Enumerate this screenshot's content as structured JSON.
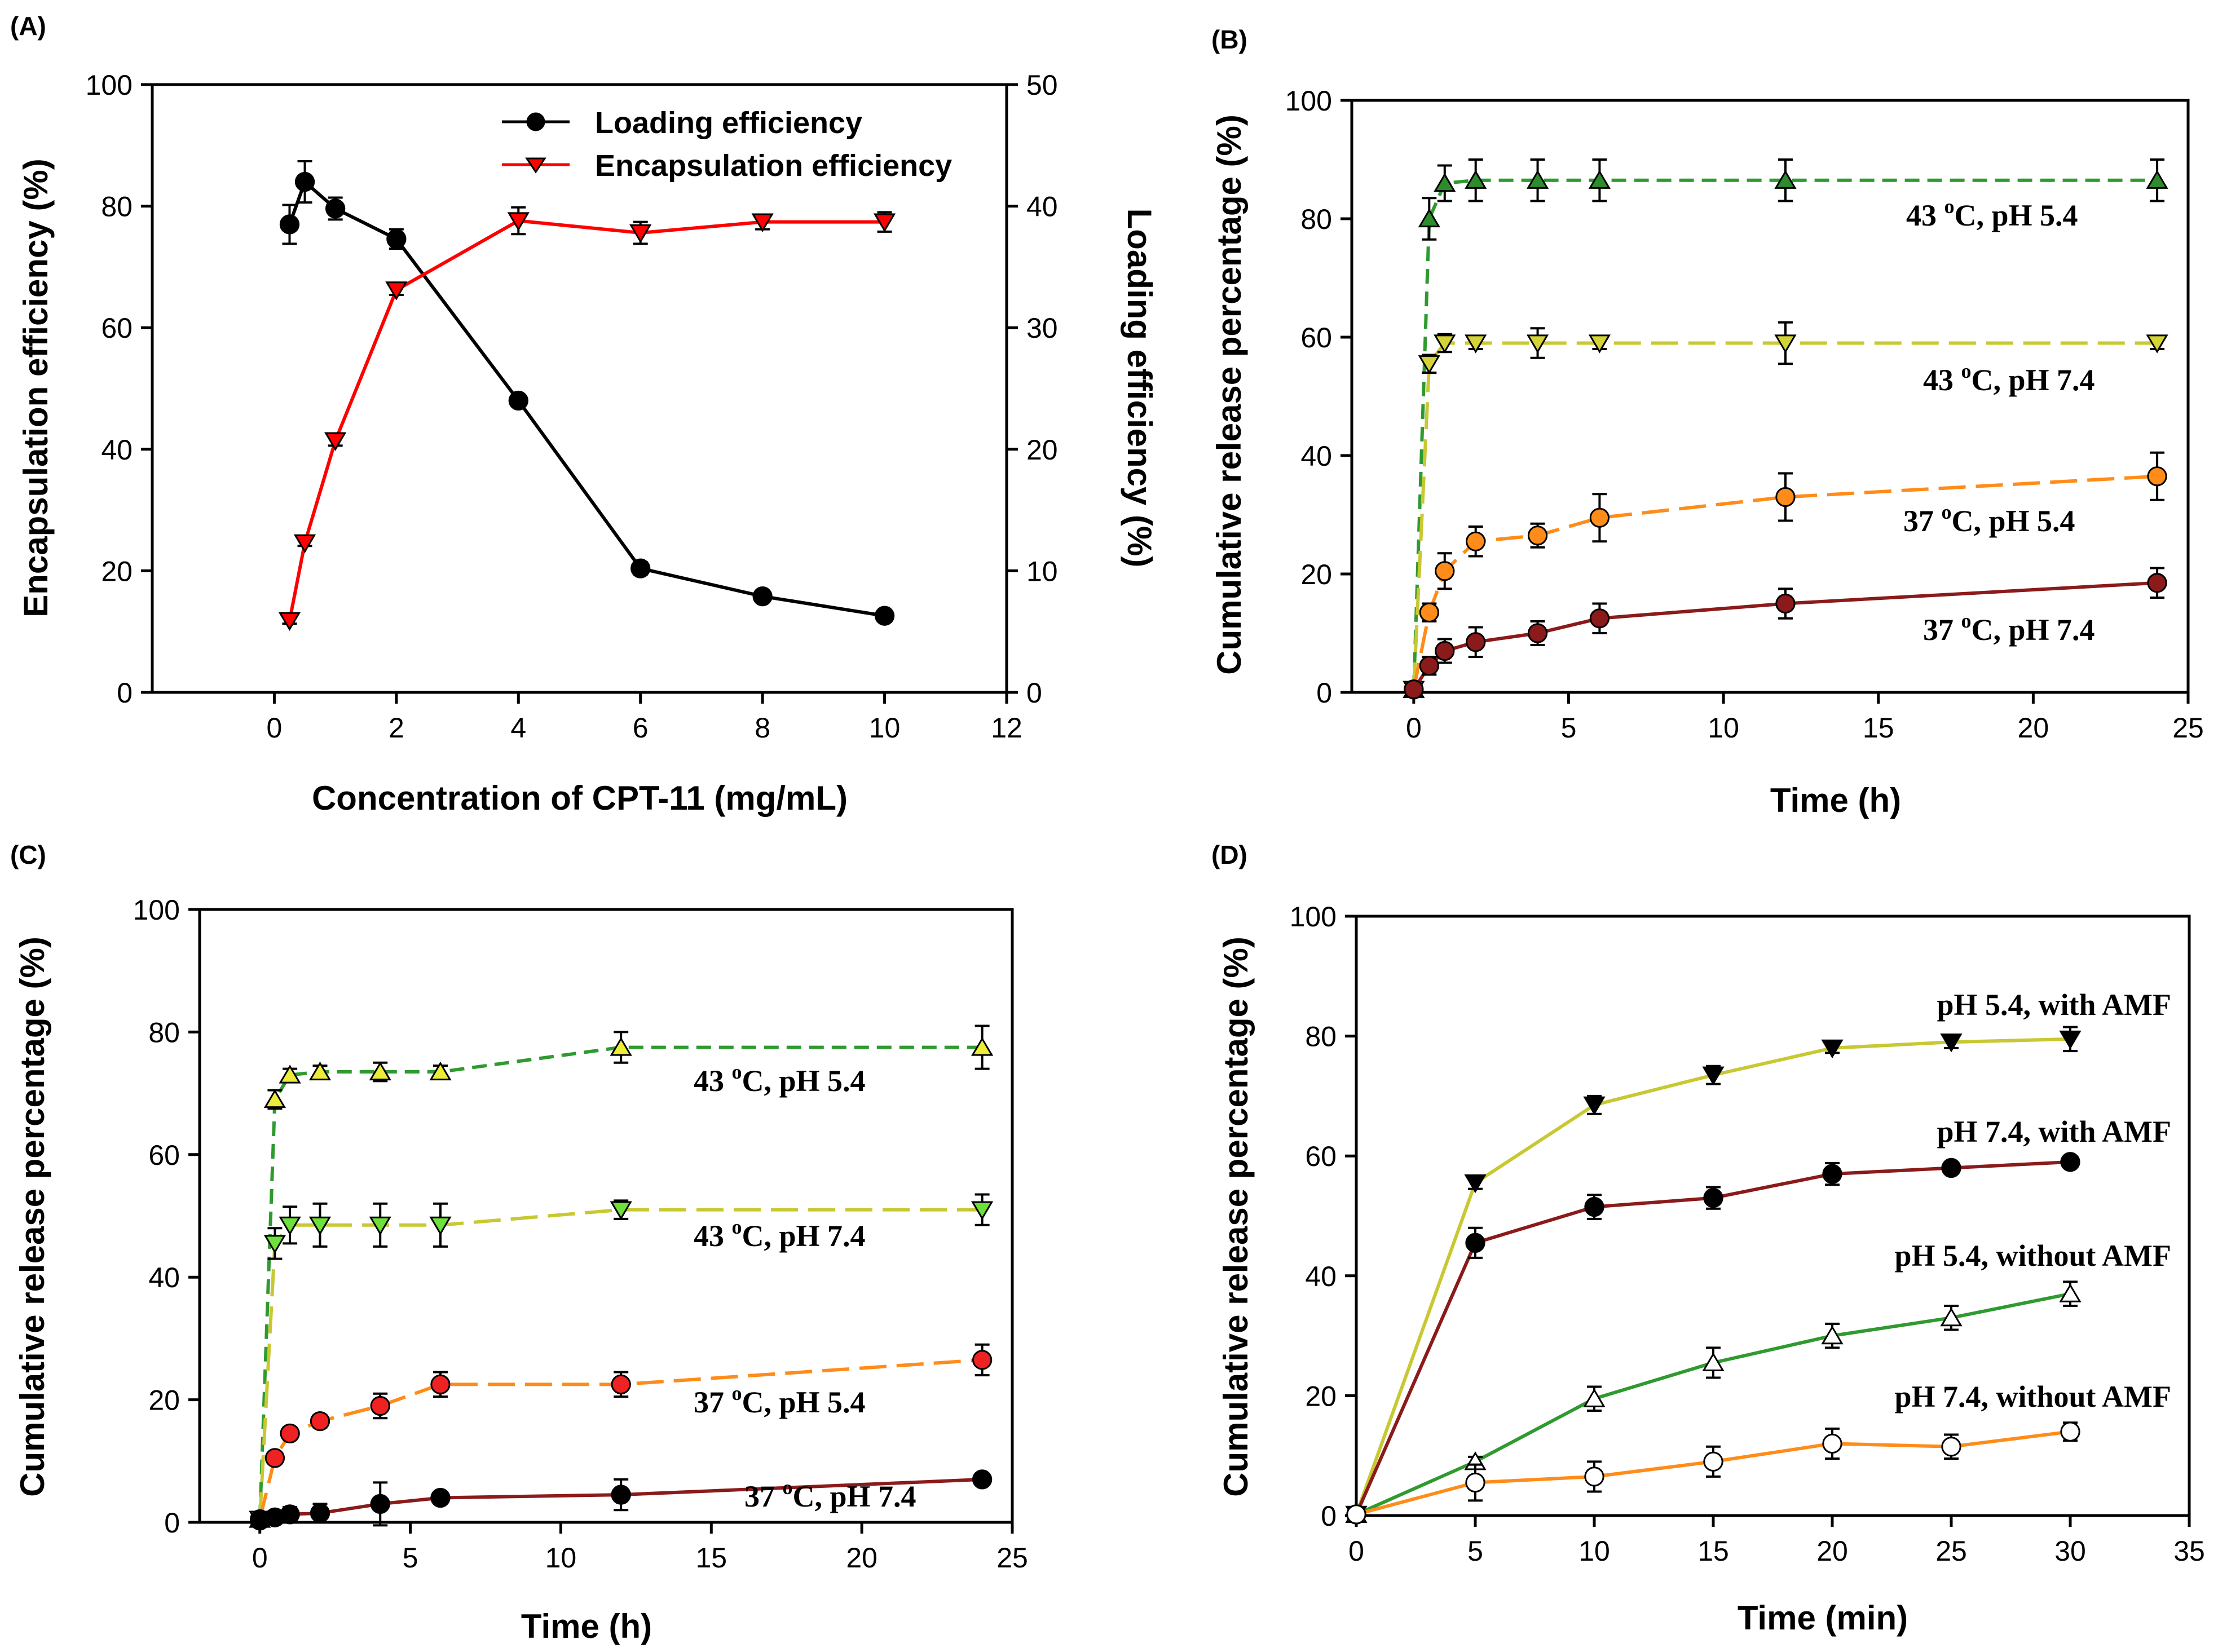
{
  "chart_data": [
    {
      "panel": "(A)",
      "type": "line",
      "title": "",
      "xlabel": "Concentration of CPT-11 (mg/mL)",
      "ylabel": "Encapsulation efficiency (%)",
      "y2label": "Loading efficiency (%)",
      "xlim": [
        -2,
        12
      ],
      "ylim": [
        0,
        100
      ],
      "y2lim": [
        0,
        50
      ],
      "xticks": [
        "0",
        "2",
        "4",
        "6",
        "8",
        "10",
        "12"
      ],
      "yticks": [
        "0",
        "20",
        "40",
        "60",
        "80",
        "100"
      ],
      "y2ticks": [
        "0",
        "10",
        "20",
        "30",
        "40",
        "50"
      ],
      "legend_position": "top-right",
      "series": [
        {
          "name": "Loading efficiency",
          "axis": "right",
          "color": "#000000",
          "line_color": "#000000",
          "marker": "circle",
          "fill": "#000000",
          "dash": "solid",
          "x": [
            0.25,
            0.5,
            1,
            2,
            4,
            6,
            8,
            10
          ],
          "y": [
            38.5,
            42.0,
            39.8,
            37.3,
            24.0,
            10.2,
            7.9,
            6.3
          ],
          "err": [
            1.6,
            1.7,
            0.9,
            0.8,
            0.3,
            0.5,
            0.3,
            0.3
          ]
        },
        {
          "name": "Encapsulation efficiency",
          "axis": "left",
          "color": "#ff0000",
          "line_color": "#ff0000",
          "marker": "triangle-down",
          "fill": "#ff0000",
          "dash": "solid",
          "x": [
            0.25,
            0.5,
            1,
            2,
            4,
            6,
            8,
            10
          ],
          "y": [
            11.8,
            24.6,
            41.4,
            66.2,
            77.6,
            75.6,
            77.4,
            77.4
          ],
          "err": [
            0.5,
            0.5,
            0.8,
            0.8,
            2.2,
            1.8,
            1.2,
            1.6
          ]
        }
      ]
    },
    {
      "panel": "(B)",
      "type": "line",
      "title": "",
      "xlabel": "Time (h)",
      "ylabel": "Cumulative release percentage (%)",
      "xlim": [
        -2,
        25
      ],
      "ylim": [
        0,
        100
      ],
      "xticks": [
        "0",
        "5",
        "10",
        "15",
        "20",
        "25"
      ],
      "yticks": [
        "0",
        "20",
        "40",
        "60",
        "80",
        "100"
      ],
      "annotations": [
        "43 °C, pH 5.4",
        "43 °C, pH 7.4",
        "37 °C, pH 5.4",
        "37 °C, pH 7.4"
      ],
      "series": [
        {
          "name": "43 °C, pH 5.4",
          "color": "#2e8b2e",
          "line_color": "#2f9a2f",
          "marker": "triangle-up",
          "fill": "#2e8b2e",
          "dash": "short",
          "x": [
            0,
            0.5,
            1,
            2,
            4,
            6,
            12,
            24
          ],
          "y": [
            0.5,
            80,
            86,
            86.5,
            86.5,
            86.5,
            86.5,
            86.5
          ],
          "err": [
            0.5,
            3.5,
            3,
            3.5,
            3.5,
            3.5,
            3.5,
            3.5
          ]
        },
        {
          "name": "43 °C, pH 7.4",
          "color": "#c8c832",
          "line_color": "#c8c832",
          "marker": "triangle-down",
          "fill": "#d4d438",
          "dash": "long",
          "x": [
            0,
            0.5,
            1,
            2,
            4,
            6,
            12,
            24
          ],
          "y": [
            0.5,
            55.5,
            59,
            59,
            59,
            59,
            59,
            59
          ],
          "err": [
            0.5,
            1.5,
            1.5,
            1,
            2.5,
            1,
            3.5,
            1
          ]
        },
        {
          "name": "37 °C, pH 5.4",
          "color": "#ff8c1a",
          "line_color": "#ff8c1a",
          "marker": "circle",
          "fill": "#ff8c1a",
          "dash": "long",
          "x": [
            0,
            0.5,
            1,
            2,
            4,
            6,
            12,
            24
          ],
          "y": [
            0.5,
            13.5,
            20.5,
            25.5,
            26.5,
            29.5,
            33,
            36.5
          ],
          "err": [
            0.3,
            1.5,
            3,
            2.5,
            2,
            4,
            4,
            4
          ]
        },
        {
          "name": "37 °C, pH 7.4",
          "color": "#8b1a1a",
          "line_color": "#8b1a1a",
          "marker": "circle",
          "fill": "#8b1a1a",
          "dash": "solid",
          "x": [
            0,
            0.5,
            1,
            2,
            4,
            6,
            12,
            24
          ],
          "y": [
            0.5,
            4.5,
            7,
            8.5,
            10,
            12.5,
            15,
            18.5
          ],
          "err": [
            0.3,
            1.5,
            2,
            2.5,
            2,
            2.5,
            2.5,
            2.5
          ]
        }
      ]
    },
    {
      "panel": "(C)",
      "type": "line",
      "title": "",
      "xlabel": "Time (h)",
      "ylabel": "Cumulative release percentage (%)",
      "xlim": [
        -2,
        25
      ],
      "ylim": [
        0,
        100
      ],
      "xticks": [
        "0",
        "5",
        "10",
        "15",
        "20",
        "25"
      ],
      "yticks": [
        "0",
        "20",
        "40",
        "60",
        "80",
        "100"
      ],
      "annotations": [
        "43 °C, pH 5.4",
        "43 °C, pH 7.4",
        "37 °C, pH 5.4",
        "37 °C, pH 7.4"
      ],
      "series": [
        {
          "name": "43 °C, pH 5.4",
          "color": "#e8e830",
          "line_color": "#2f9a2f",
          "marker": "triangle-up",
          "fill": "#ecec3a",
          "dash": "short",
          "x": [
            0,
            0.5,
            1,
            2,
            4,
            6,
            12,
            24
          ],
          "y": [
            0.5,
            69,
            73,
            73.5,
            73.5,
            73.5,
            77.5,
            77.5
          ],
          "err": [
            0.3,
            1.5,
            1,
            1,
            1.5,
            1,
            2.5,
            3.5
          ]
        },
        {
          "name": "43 °C, pH 7.4",
          "color": "#66dd33",
          "line_color": "#c8c832",
          "marker": "triangle-down",
          "fill": "#6ee03a",
          "dash": "long",
          "x": [
            0,
            0.5,
            1,
            2,
            4,
            6,
            12,
            24
          ],
          "y": [
            0.5,
            45.5,
            48.5,
            48.5,
            48.5,
            48.5,
            51,
            51
          ],
          "err": [
            0.3,
            2.5,
            3,
            3.5,
            3.5,
            3.5,
            1.5,
            2.5
          ]
        },
        {
          "name": "37 °C, pH 5.4",
          "color": "#ee2222",
          "line_color": "#ff8c1a",
          "marker": "circle",
          "fill": "#ee2222",
          "dash": "long",
          "x": [
            0,
            0.5,
            1,
            2,
            4,
            6,
            12,
            24
          ],
          "y": [
            0.5,
            10.5,
            14.5,
            16.5,
            19,
            22.5,
            22.5,
            26.5
          ],
          "err": [
            0.3,
            0.8,
            1,
            1,
            2,
            2,
            2,
            2.5
          ]
        },
        {
          "name": "37 °C, pH 7.4",
          "color": "#000000",
          "line_color": "#8b1a1a",
          "marker": "circle",
          "fill": "#000000",
          "dash": "solid",
          "x": [
            0,
            0.5,
            1,
            2,
            4,
            6,
            12,
            24
          ],
          "y": [
            0.3,
            0.8,
            1.3,
            1.5,
            3,
            4,
            4.5,
            7
          ],
          "err": [
            0.2,
            1,
            1.2,
            1.5,
            3.5,
            0.8,
            2.5,
            0.8
          ]
        }
      ]
    },
    {
      "panel": "(D)",
      "type": "line",
      "title": "",
      "xlabel": "Time (min)",
      "ylabel": "Cumulative release percentage (%)",
      "xlim": [
        0,
        35
      ],
      "ylim": [
        0,
        100
      ],
      "xticks": [
        "0",
        "5",
        "10",
        "15",
        "20",
        "25",
        "30",
        "35"
      ],
      "yticks": [
        "0",
        "20",
        "40",
        "60",
        "80",
        "100"
      ],
      "annotations": [
        "pH 5.4, with AMF",
        "pH 7.4, with AMF",
        "pH 5.4, without AMF",
        "pH 7.4, without AMF"
      ],
      "series": [
        {
          "name": "pH 5.4, with AMF",
          "color": "#000000",
          "line_color": "#c8c832",
          "marker": "triangle-down",
          "fill": "#000000",
          "dash": "solid",
          "x": [
            0,
            5,
            10,
            15,
            20,
            25,
            30
          ],
          "y": [
            0.2,
            55.5,
            68.5,
            73.5,
            78,
            79,
            79.5
          ],
          "err": [
            0.3,
            1,
            1.5,
            1.5,
            0.8,
            1,
            2
          ]
        },
        {
          "name": "pH 7.4, with AMF",
          "color": "#000000",
          "line_color": "#8b1a1a",
          "marker": "circle",
          "fill": "#000000",
          "dash": "solid",
          "x": [
            0,
            5,
            10,
            15,
            20,
            25,
            30
          ],
          "y": [
            0.2,
            45.5,
            51.5,
            53,
            57,
            58,
            59
          ],
          "err": [
            0.3,
            2.5,
            2,
            1.8,
            1.8,
            1,
            0.8
          ]
        },
        {
          "name": "pH 5.4, without AMF",
          "color": "#000000",
          "line_color": "#2f9a2f",
          "marker": "triangle-up",
          "fill": "#ffffff",
          "dash": "solid",
          "x": [
            0,
            5,
            10,
            15,
            20,
            25,
            30
          ],
          "y": [
            0.2,
            9,
            19.5,
            25.5,
            30,
            33,
            37
          ],
          "err": [
            0.3,
            0.8,
            2,
            2.5,
            2,
            2,
            2
          ]
        },
        {
          "name": "pH 7.4, without AMF",
          "color": "#000000",
          "line_color": "#ff8c1a",
          "marker": "circle",
          "fill": "#ffffff",
          "dash": "solid",
          "x": [
            0,
            5,
            10,
            15,
            20,
            25,
            30
          ],
          "y": [
            0.2,
            5.5,
            6.5,
            9,
            12,
            11.5,
            14
          ],
          "err": [
            0.3,
            3,
            2.5,
            2.5,
            2.5,
            2,
            1.5
          ]
        }
      ]
    }
  ]
}
